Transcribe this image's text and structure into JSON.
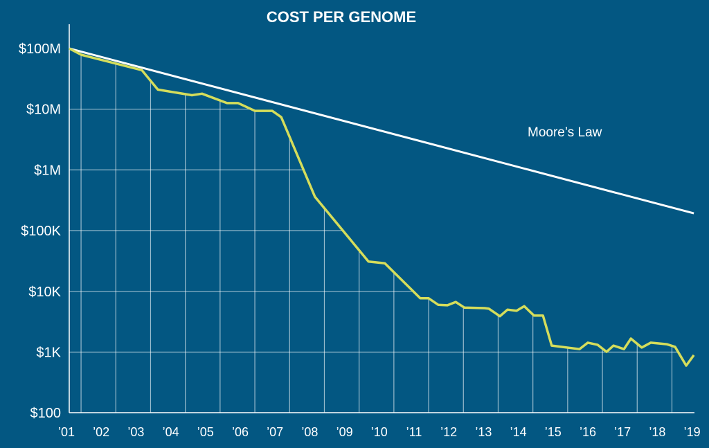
{
  "chart_data": {
    "type": "line",
    "title": "COST PER GENOME",
    "xlabel": "",
    "ylabel": "",
    "yscale": "log",
    "ylim": [
      100,
      100000000
    ],
    "xlim": [
      2001,
      2019
    ],
    "grid": true,
    "y_ticks": [
      {
        "value": 100000000,
        "label": "$100M"
      },
      {
        "value": 10000000,
        "label": "$10M"
      },
      {
        "value": 1000000,
        "label": "$1M"
      },
      {
        "value": 100000,
        "label": "$100K"
      },
      {
        "value": 10000,
        "label": "$10K"
      },
      {
        "value": 1000,
        "label": "$1K"
      },
      {
        "value": 100,
        "label": "$100"
      }
    ],
    "x_ticks": [
      {
        "value": 2001,
        "label": "’01"
      },
      {
        "value": 2002,
        "label": "’02"
      },
      {
        "value": 2003,
        "label": "’03"
      },
      {
        "value": 2004,
        "label": "’04"
      },
      {
        "value": 2005,
        "label": "’05"
      },
      {
        "value": 2006,
        "label": "’06"
      },
      {
        "value": 2007,
        "label": "’07"
      },
      {
        "value": 2008,
        "label": "’08"
      },
      {
        "value": 2009,
        "label": "’09"
      },
      {
        "value": 2010,
        "label": "’10"
      },
      {
        "value": 2011,
        "label": "’11"
      },
      {
        "value": 2012,
        "label": "’12"
      },
      {
        "value": 2013,
        "label": "’13"
      },
      {
        "value": 2014,
        "label": "’14"
      },
      {
        "value": 2015,
        "label": "’15"
      },
      {
        "value": 2016,
        "label": "’16"
      },
      {
        "value": 2017,
        "label": "’17"
      },
      {
        "value": 2018,
        "label": "’18"
      },
      {
        "value": 2019,
        "label": "’19"
      }
    ],
    "series": [
      {
        "name": "Cost per genome",
        "color": "#d5dd5b",
        "x": [
          2001.0,
          2001.34,
          2003.09,
          2003.55,
          2004.53,
          2004.82,
          2005.54,
          2005.86,
          2006.34,
          2006.84,
          2007.1,
          2008.07,
          2009.61,
          2010.08,
          2011.1,
          2011.34,
          2011.62,
          2011.88,
          2012.12,
          2012.37,
          2012.95,
          2013.07,
          2013.39,
          2013.61,
          2013.87,
          2014.09,
          2014.37,
          2014.63,
          2014.88,
          2015.68,
          2015.92,
          2016.2,
          2016.46,
          2016.66,
          2016.96,
          2017.16,
          2017.47,
          2017.73,
          2018.19,
          2018.43,
          2018.75,
          2018.97
        ],
        "y": [
          100000000,
          79000000,
          44000000,
          21000000,
          17000000,
          18000000,
          12600000,
          12600000,
          9400000,
          9400000,
          7400000,
          360000,
          31000,
          29000,
          7700,
          7700,
          6000,
          5900,
          6700,
          5400,
          5300,
          5200,
          3900,
          5000,
          4800,
          5700,
          4000,
          4000,
          1280,
          1120,
          1430,
          1320,
          1010,
          1280,
          1120,
          1670,
          1190,
          1430,
          1350,
          1220,
          600,
          890
        ]
      },
      {
        "name": "Moore’s Law",
        "color": "#ffffff",
        "x": [
          2001.0,
          2018.97
        ],
        "y": [
          100000000,
          193000
        ]
      }
    ],
    "annotations": [
      {
        "text": "Moore’s Law",
        "x": 2014.2,
        "y": 3200000
      }
    ],
    "background": "#035782"
  }
}
